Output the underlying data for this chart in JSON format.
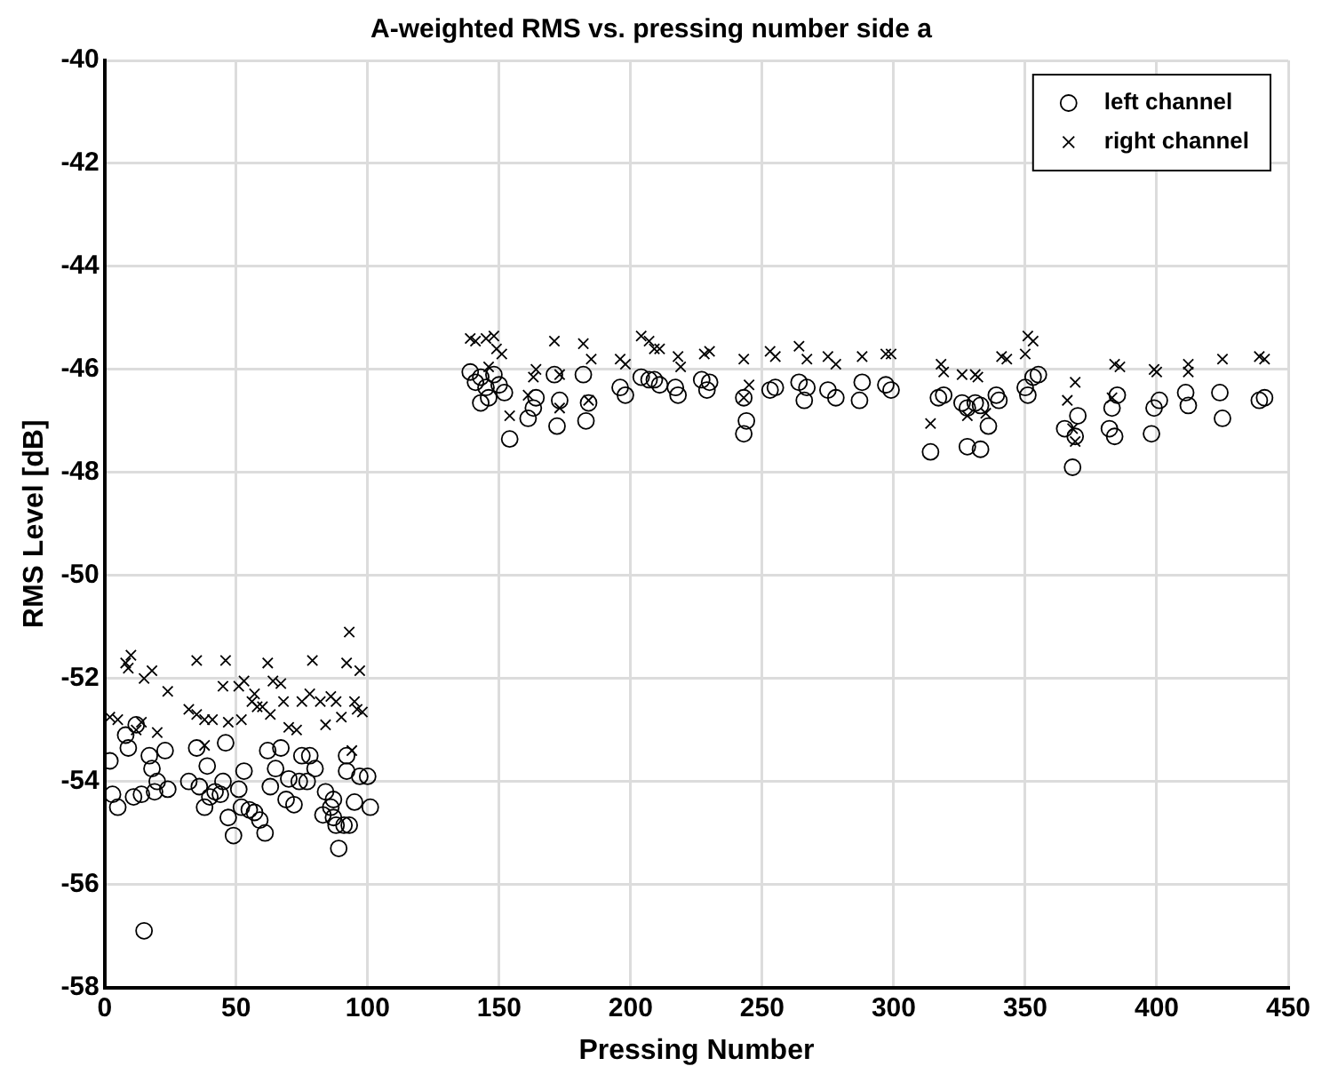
{
  "chart_data": {
    "type": "scatter",
    "title": "A-weighted RMS vs. pressing number side a",
    "xlabel": "Pressing Number",
    "ylabel": "RMS Level [dB]",
    "xlim": [
      0,
      450
    ],
    "xticks": [
      0,
      50,
      100,
      150,
      200,
      250,
      300,
      350,
      400,
      450
    ],
    "ylim": [
      -58,
      -40
    ],
    "yticks": [
      -58,
      -56,
      -54,
      -52,
      -50,
      -48,
      -46,
      -44,
      -42,
      -40
    ],
    "grid": true,
    "legend": "top right",
    "series": [
      {
        "name": "left channel",
        "color": "#000000",
        "marker": "circle",
        "x": [
          2,
          3,
          5,
          8,
          9,
          11,
          12,
          14,
          15,
          17,
          18,
          19,
          20,
          23,
          24,
          32,
          35,
          36,
          38,
          39,
          40,
          42,
          44,
          46,
          45,
          47,
          49,
          51,
          53,
          52,
          55,
          57,
          59,
          61,
          62,
          63,
          65,
          67,
          69,
          70,
          72,
          74,
          75,
          77,
          78,
          80,
          83,
          84,
          86,
          87,
          87,
          88,
          89,
          91,
          92,
          92,
          93,
          95,
          97,
          100,
          101,
          139,
          141,
          143,
          143,
          145,
          146,
          148,
          150,
          152,
          154,
          161,
          163,
          164,
          171,
          172,
          173,
          182,
          183,
          184,
          196,
          198,
          204,
          207,
          209,
          211,
          217,
          218,
          227,
          229,
          230,
          243,
          244,
          243,
          253,
          255,
          264,
          266,
          267,
          275,
          278,
          287,
          288,
          297,
          299,
          314,
          317,
          319,
          326,
          328,
          328,
          331,
          333,
          333,
          336,
          339,
          340,
          350,
          351,
          353,
          355,
          365,
          368,
          369,
          370,
          382,
          384,
          383,
          385,
          398,
          399,
          401,
          411,
          412,
          424,
          425,
          439,
          441
        ],
        "values": [
          -53.6,
          -54.25,
          -54.5,
          -53.1,
          -53.35,
          -54.3,
          -52.9,
          -54.25,
          -56.9,
          -53.5,
          -53.75,
          -54.2,
          -54,
          -53.4,
          -54.15,
          -54,
          -53.35,
          -54.1,
          -54.5,
          -53.7,
          -54.3,
          -54.2,
          -54.25,
          -53.25,
          -54,
          -54.7,
          -55.05,
          -54.15,
          -53.8,
          -54.5,
          -54.55,
          -54.6,
          -54.75,
          -55,
          -53.4,
          -54.1,
          -53.75,
          -53.35,
          -54.35,
          -53.95,
          -54.45,
          -54,
          -53.5,
          -54,
          -53.5,
          -53.75,
          -54.65,
          -54.2,
          -54.5,
          -54.35,
          -54.7,
          -54.85,
          -55.3,
          -54.85,
          -53.5,
          -53.8,
          -54.85,
          -54.4,
          -53.9,
          -53.9,
          -54.5,
          -46.05,
          -46.25,
          -46.15,
          -46.65,
          -46.35,
          -46.55,
          -46.1,
          -46.3,
          -46.45,
          -47.35,
          -46.95,
          -46.75,
          -46.55,
          -46.1,
          -47.1,
          -46.6,
          -46.1,
          -47,
          -46.65,
          -46.35,
          -46.5,
          -46.15,
          -46.2,
          -46.2,
          -46.3,
          -46.35,
          -46.5,
          -46.2,
          -46.4,
          -46.25,
          -46.55,
          -47,
          -47.25,
          -46.4,
          -46.35,
          -46.25,
          -46.6,
          -46.35,
          -46.4,
          -46.55,
          -46.6,
          -46.25,
          -46.3,
          -46.4,
          -47.6,
          -46.55,
          -46.5,
          -46.65,
          -47.5,
          -46.75,
          -46.65,
          -46.7,
          -47.55,
          -47.1,
          -46.5,
          -46.6,
          -46.35,
          -46.5,
          -46.15,
          -46.1,
          -47.15,
          -47.9,
          -47.3,
          -46.9,
          -47.15,
          -47.3,
          -46.75,
          -46.5,
          -47.25,
          -46.75,
          -46.6,
          -46.45,
          -46.7,
          -46.45,
          -46.95,
          -46.6,
          -46.55
        ]
      },
      {
        "name": "right channel",
        "color": "#000000",
        "marker": "cross",
        "x": [
          2,
          5,
          8,
          10,
          9,
          12,
          14,
          15,
          18,
          20,
          24,
          32,
          35,
          35,
          38,
          38,
          41,
          46,
          45,
          47,
          51,
          52,
          53,
          56,
          57,
          58,
          60,
          62,
          63,
          64,
          67,
          68,
          70,
          73,
          75,
          78,
          79,
          82,
          84,
          86,
          88,
          90,
          92,
          93,
          95,
          96,
          97,
          98,
          94,
          139,
          141,
          145,
          148,
          149,
          151,
          146,
          154,
          161,
          163,
          164,
          171,
          173,
          173,
          182,
          185,
          184,
          196,
          198,
          204,
          207,
          209,
          211,
          218,
          219,
          228,
          230,
          243,
          245,
          243,
          253,
          255,
          264,
          267,
          275,
          278,
          288,
          297,
          299,
          314,
          318,
          319,
          326,
          328,
          331,
          332,
          335,
          341,
          343,
          351,
          353,
          350,
          369,
          366,
          368,
          369,
          384,
          386,
          383,
          399,
          400,
          412,
          412,
          425,
          439,
          441
        ],
        "values": [
          -52.75,
          -52.8,
          -51.7,
          -51.55,
          -51.8,
          -53,
          -52.85,
          -52,
          -51.85,
          -53.05,
          -52.25,
          -52.6,
          -51.65,
          -52.7,
          -52.8,
          -53.3,
          -52.8,
          -51.65,
          -52.15,
          -52.85,
          -52.15,
          -52.8,
          -52.05,
          -52.45,
          -52.3,
          -52.55,
          -52.55,
          -51.7,
          -52.7,
          -52.05,
          -52.1,
          -52.45,
          -52.95,
          -53,
          -52.45,
          -52.3,
          -51.65,
          -52.45,
          -52.9,
          -52.35,
          -52.45,
          -52.75,
          -51.7,
          -51.1,
          -52.45,
          -52.6,
          -51.85,
          -52.65,
          -53.4,
          -45.4,
          -45.45,
          -45.4,
          -45.35,
          -45.6,
          -45.7,
          -45.95,
          -46.9,
          -46.5,
          -46.15,
          -46,
          -45.45,
          -46.1,
          -46.75,
          -45.5,
          -45.8,
          -46.6,
          -45.8,
          -45.9,
          -45.35,
          -45.45,
          -45.6,
          -45.6,
          -45.75,
          -45.95,
          -45.7,
          -45.65,
          -45.8,
          -46.3,
          -46.55,
          -45.65,
          -45.75,
          -45.55,
          -45.8,
          -45.75,
          -45.9,
          -45.75,
          -45.7,
          -45.7,
          -47.05,
          -45.9,
          -46.05,
          -46.1,
          -46.9,
          -46.1,
          -46.15,
          -46.85,
          -45.75,
          -45.8,
          -45.35,
          -45.45,
          -45.7,
          -46.25,
          -46.6,
          -47.15,
          -47.4,
          -45.9,
          -45.95,
          -46.55,
          -46,
          -46.05,
          -45.9,
          -46.05,
          -45.8,
          -45.75,
          -45.8
        ]
      }
    ]
  }
}
